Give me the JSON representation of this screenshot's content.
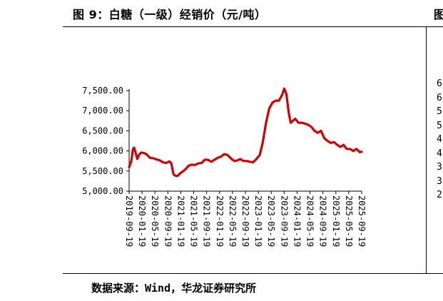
{
  "figure": {
    "title": "图 9：白糖（一级）经销价（元/吨）",
    "source": "数据来源：Wind，华龙证券研究所",
    "right_title_fragment": "图",
    "right_tick_fragments": [
      "6",
      "6",
      "5",
      "5",
      "4",
      "4",
      "3",
      "3",
      "2"
    ]
  },
  "colors": {
    "line": "#d40000",
    "axis": "#000000"
  },
  "chart_data": {
    "type": "line",
    "title": "",
    "xlabel": "",
    "ylabel": "",
    "ylim": [
      5000,
      7500
    ],
    "yticks": [
      5000,
      5500,
      6000,
      6500,
      7000,
      7500
    ],
    "ytick_labels": [
      "5,000.00",
      "5,500.00",
      "6,000.00",
      "6,500.00",
      "7,000.00",
      "7,500.00"
    ],
    "xtick_labels": [
      "2019-09-19",
      "2020-01-19",
      "2020-05-19",
      "2020-09-19",
      "2021-01-19",
      "2021-05-19",
      "2021-09-19",
      "2022-01-19",
      "2022-05-19",
      "2022-09-19",
      "2023-01-19",
      "2023-05-19",
      "2023-09-19",
      "2024-01-19",
      "2024-05-19",
      "2024-09-19",
      "2025-01-19",
      "2025-05-19",
      "2025-09-19"
    ],
    "x_range": [
      "2019-09-19",
      "2025-09-19"
    ],
    "series": [
      {
        "x": [
          "2019-09-19",
          "2019-10-10",
          "2019-10-25",
          "2019-11-05",
          "2019-11-20",
          "2019-12-05",
          "2019-12-20",
          "2020-01-10",
          "2020-02-01",
          "2020-03-01",
          "2020-04-01",
          "2020-05-01",
          "2020-06-01",
          "2020-07-01",
          "2020-08-01",
          "2020-09-01",
          "2020-10-01",
          "2020-10-20",
          "2020-11-10",
          "2020-12-01",
          "2020-12-20",
          "2021-01-10",
          "2021-02-01",
          "2021-03-01",
          "2021-04-01",
          "2021-05-01",
          "2021-06-01",
          "2021-07-01",
          "2021-08-01",
          "2021-09-01",
          "2021-10-01",
          "2021-11-01",
          "2021-12-01",
          "2022-01-01",
          "2022-02-01",
          "2022-03-01",
          "2022-04-01",
          "2022-05-01",
          "2022-05-20",
          "2022-06-10",
          "2022-07-01",
          "2022-08-01",
          "2022-09-01",
          "2022-10-01",
          "2022-11-01",
          "2022-12-01",
          "2023-01-01",
          "2023-02-01",
          "2023-03-01",
          "2023-04-01",
          "2023-05-01",
          "2023-06-01",
          "2023-07-01",
          "2023-08-01",
          "2023-09-01",
          "2023-09-20",
          "2023-10-10",
          "2023-11-01",
          "2023-11-20",
          "2023-12-10",
          "2024-01-01",
          "2024-02-01",
          "2024-03-01",
          "2024-04-01",
          "2024-05-01",
          "2024-06-01",
          "2024-07-01",
          "2024-08-01",
          "2024-09-01",
          "2024-10-01",
          "2024-11-01",
          "2024-12-01",
          "2025-01-01",
          "2025-02-01",
          "2025-03-01",
          "2025-04-01",
          "2025-05-01",
          "2025-06-01",
          "2025-07-01",
          "2025-08-01",
          "2025-09-01",
          "2025-09-19"
        ],
        "values": [
          5600,
          5750,
          6050,
          6080,
          5950,
          5800,
          5900,
          5960,
          5950,
          5920,
          5830,
          5820,
          5790,
          5770,
          5720,
          5700,
          5740,
          5700,
          5420,
          5380,
          5380,
          5440,
          5480,
          5540,
          5630,
          5660,
          5650,
          5690,
          5700,
          5780,
          5780,
          5730,
          5780,
          5830,
          5860,
          5920,
          5900,
          5830,
          5780,
          5750,
          5760,
          5800,
          5750,
          5750,
          5730,
          5720,
          5800,
          5900,
          6200,
          6700,
          7050,
          7200,
          7250,
          7250,
          7400,
          7550,
          7420,
          6950,
          6700,
          6750,
          6800,
          6700,
          6700,
          6680,
          6650,
          6600,
          6500,
          6450,
          6500,
          6320,
          6250,
          6200,
          6220,
          6150,
          6100,
          6150,
          6050,
          6050,
          6000,
          6050,
          5970,
          5980
        ]
      }
    ],
    "grid": false,
    "legend": "none"
  }
}
